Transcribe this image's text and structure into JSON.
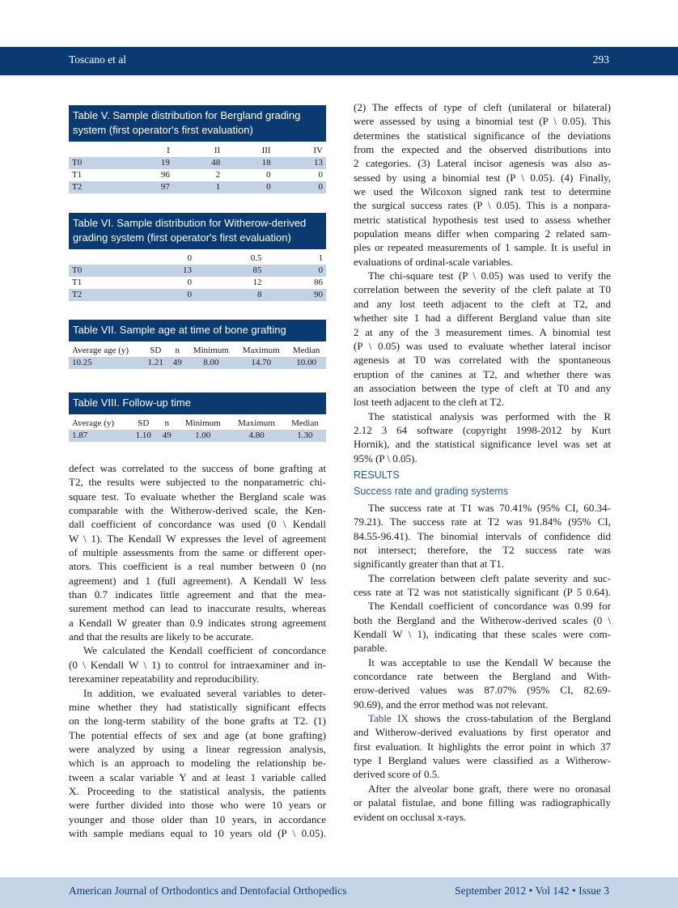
{
  "header": {
    "authors": "Toscano et al",
    "page": "293"
  },
  "footer": {
    "journal": "American Journal of Orthodontics and Dentofacial Orthopedics",
    "issue": "September 2012 • Vol 142 • Issue 3"
  },
  "tables": {
    "t5": {
      "title": "Table V. Sample distribution for Bergland grading system (first operator's first evaluation)",
      "header": [
        "",
        "I",
        "II",
        "III",
        "IV"
      ],
      "rows": [
        [
          "T0",
          "19",
          "48",
          "18",
          "13"
        ],
        [
          "T1",
          "96",
          "2",
          "0",
          "0"
        ],
        [
          "T2",
          "97",
          "1",
          "0",
          "0"
        ]
      ]
    },
    "t6": {
      "title": "Table VI. Sample distribution for Witherow-derived grading system (first operator's first evaluation)",
      "header": [
        "",
        "0",
        "0.5",
        "1"
      ],
      "rows": [
        [
          "T0",
          "13",
          "85",
          "0"
        ],
        [
          "T1",
          "0",
          "12",
          "86"
        ],
        [
          "T2",
          "0",
          "8",
          "90"
        ]
      ]
    },
    "t7": {
      "title": "Table VII. Sample age at time of bone grafting",
      "header": [
        "Average age (y)",
        "SD",
        "n",
        "Minimum",
        "Maximum",
        "Median"
      ],
      "rows": [
        [
          "10.25",
          "1.21",
          "49",
          "8.00",
          "14.70",
          "10.00"
        ]
      ]
    },
    "t8": {
      "title": "Table VIII. Follow-up time",
      "header": [
        "Average (y)",
        "SD",
        "n",
        "Minimum",
        "Maximum",
        "Median"
      ],
      "rows": [
        [
          "1.87",
          "1.10",
          "49",
          "1.00",
          "4.80",
          "1.30"
        ]
      ]
    }
  },
  "left_column": [
    {
      "type": "p",
      "indent": false,
      "lines": [
        "defect was correlated to the success of bone grafting at",
        "T2, the results were subjected to the nonparametric chi-",
        "square test. To evaluate whether the Bergland scale was",
        "comparable with the Witherow-derived scale, the Ken-",
        "dall coefficient of concordance was used (0 \\  Kendall",
        "W \\ 1). The Kendall W expresses the level of agreement",
        "of multiple assessments from the same or different oper-",
        "ators. This coefficient is a real number between 0 (no",
        "agreement) and 1 (full agreement). A Kendall W less",
        "than 0.7 indicates little agreement and that the mea-",
        "surement method can lead to inaccurate results, whereas",
        "a Kendall W greater than 0.9 indicates strong agreement",
        "and that the results are likely to be accurate."
      ]
    },
    {
      "type": "p",
      "indent": true,
      "lines": [
        "We calculated the Kendall coefficient of concordance",
        "(0 \\  Kendall W \\  1) to control for intraexaminer and in-",
        "terexaminer repeatability and reproducibility."
      ]
    },
    {
      "type": "p",
      "indent": true,
      "lines": [
        "In addition, we evaluated several variables to deter-",
        "mine whether they had statistically significant effects",
        "on the long-term stability of the bone grafts at T2. (1)",
        "The potential effects of sex and age (at bone grafting)",
        "were analyzed by using a linear regression analysis,",
        "which is an approach to modeling the relationship be-",
        "tween a scalar variable Y and at least 1 variable called",
        "X. Proceeding to the statistical analysis, the patients",
        "were further divided into those who were 10 years or",
        "younger and those older than 10 years, in accordance",
        "with sample medians equal to 10 years old (P \\ 0.05)."
      ],
      "justify_last": true
    }
  ],
  "right_column": [
    {
      "type": "p",
      "indent": false,
      "lines": [
        "(2) The effects of type of cleft (unilateral or bilateral)",
        "were assessed by using a binomial test (P \\ 0.05). This",
        "determines the statistical significance of the deviations",
        "from the expected and the observed distributions into",
        "2 categories. (3) Lateral incisor agenesis was also as-",
        "sessed by using a binomial test (P \\ 0.05). (4) Finally,",
        "we used the Wilcoxon signed rank test to determine",
        "the surgical success rates (P \\ 0.05). This is a nonpara-",
        "metric statistical hypothesis test used to assess whether",
        "population means differ when comparing 2 related sam-",
        "ples or repeated measurements of 1 sample. It is useful in",
        "evaluations of ordinal-scale variables."
      ]
    },
    {
      "type": "p",
      "indent": true,
      "lines": [
        "The chi-square test (P \\ 0.05) was used to verify the",
        "correlation between the severity of the cleft palate at T0",
        "and any lost teeth adjacent to the cleft at T2, and",
        "whether site 1 had a different Bergland value than site",
        "2 at any of the 3 measurement times. A binomial test",
        "(P \\ 0.05) was used to evaluate whether lateral incisor",
        "agenesis at T0 was correlated with the spontaneous",
        "eruption of the canines at T2, and whether there was",
        "an association between the type of cleft at T0 and any",
        "lost teeth adjacent to the cleft at T2."
      ]
    },
    {
      "type": "p",
      "indent": true,
      "lines": [
        "The statistical analysis was performed with the R",
        "2.12  3  64 software (copyright 1998-2012 by Kurt",
        "Hornik), and the statistical significance level was set at",
        "95% (P \\ 0.05)."
      ]
    },
    {
      "type": "h1",
      "text": "RESULTS"
    },
    {
      "type": "h2",
      "text": "Success rate and grading systems"
    },
    {
      "type": "p",
      "indent": true,
      "lines": [
        "The success rate at T1 was 70.41% (95% CI, 60.34-",
        "79.21). The success rate at T2 was 91.84% (95% CI,",
        "84.55-96.41). The binomial intervals of confidence did",
        "not intersect; therefore, the T2 success rate was",
        "significantly greater than that at T1."
      ]
    },
    {
      "type": "p",
      "indent": true,
      "lines": [
        "The correlation between cleft palate severity and suc-",
        "cess rate at T2 was not statistically significant (P 5  0.64)."
      ],
      "justify_last": true
    },
    {
      "type": "p",
      "indent": true,
      "lines": [
        "The Kendall coefficient of concordance was 0.99 for",
        "both the Bergland and the Witherow-derived scales (0 \\",
        "Kendall W \\  1), indicating that these scales were com-",
        "parable."
      ]
    },
    {
      "type": "p",
      "indent": true,
      "lines": [
        "It was acceptable to use the Kendall W because the",
        "concordance rate between the Bergland and With-",
        "erow-derived values was 87.07% (95% CI, 82.69-",
        "90.69), and the error method was not relevant."
      ]
    },
    {
      "type": "p",
      "indent": true,
      "link": "Table IX",
      "lines": [
        " shows the cross-tabulation of the Bergland",
        "and Witherow-derived evaluations by first operator and",
        "first evaluation. It highlights the error point in which 37",
        "type I Bergland values were classified as a Witherow-",
        "derived score of 0.5."
      ]
    },
    {
      "type": "p",
      "indent": true,
      "lines": [
        "After the alveolar bone graft, there were no oronasal",
        "or palatal fistulae, and bone filling was radiographically",
        "evident on occlusal x-rays."
      ]
    }
  ]
}
